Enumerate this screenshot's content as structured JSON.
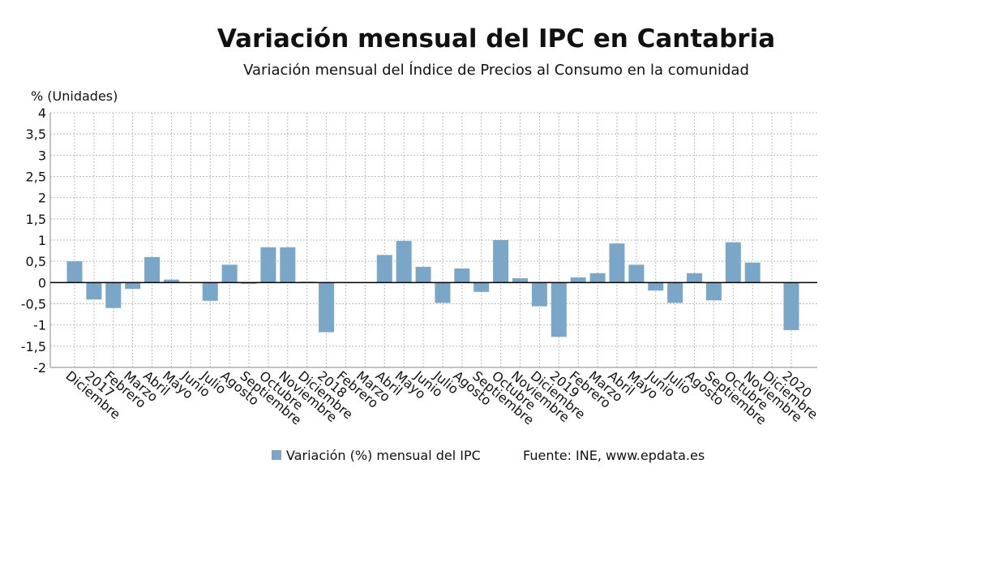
{
  "chart_data": {
    "type": "bar",
    "title": "Variación mensual del IPC en Cantabria",
    "subtitle": "Variación mensual del Índice de Precios al Consumo en la comunidad",
    "y_label": "% (Unidades)",
    "source": "Fuente: INE, www.epdata.es",
    "categories": [
      "Diciembre",
      "2017",
      "Febrero",
      "Marzo",
      "Abril",
      "Mayo",
      "Junio",
      "Julio",
      "Agosto",
      "Septiembre",
      "Octubre",
      "Noviembre",
      "Diciembre",
      "2018",
      "Febrero",
      "Marzo",
      "Abril",
      "Mayo",
      "Junio",
      "Julio",
      "Agosto",
      "Septiembre",
      "Octubre",
      "Noviembre",
      "Diciembre",
      "2019",
      "Febrero",
      "Marzo",
      "Abril",
      "Mayo",
      "Junio",
      "Julio",
      "Agosto",
      "Septiembre",
      "Octubre",
      "Noviembre",
      "Diciembre",
      "2020"
    ],
    "series": [
      {
        "name": "Variación (%) mensual del IPC",
        "color": "#7aa6c8",
        "values": [
          0.5,
          -0.4,
          -0.6,
          -0.15,
          0.6,
          0.07,
          0,
          -0.43,
          0.42,
          -0.03,
          0.83,
          0.83,
          0.02,
          -1.17,
          0.01,
          0,
          0.65,
          0.98,
          0.37,
          -0.48,
          0.33,
          -0.22,
          1.0,
          0.1,
          -0.56,
          -1.28,
          0.12,
          0.22,
          0.92,
          0.42,
          -0.19,
          -0.48,
          0.22,
          -0.42,
          0.95,
          0.47,
          -0.01,
          -1.12
        ]
      }
    ],
    "ylim": [
      -2,
      4
    ],
    "yticks": [
      -2,
      {
        "value": -1.5,
        "label": "-1,5"
      },
      -1,
      {
        "value": -0.5,
        "label": "-0,5"
      },
      0,
      {
        "value": 0.5,
        "label": "0,5"
      },
      1,
      {
        "value": 1.5,
        "label": "1,5"
      },
      2,
      {
        "value": 2.5,
        "label": "2,5"
      },
      3,
      {
        "value": 3.5,
        "label": "3,5"
      },
      4
    ],
    "grid": true
  }
}
